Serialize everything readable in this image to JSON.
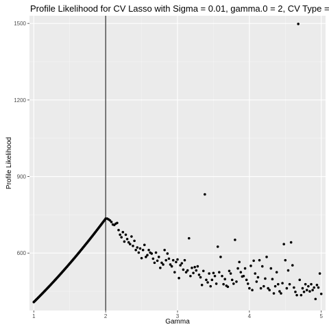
{
  "chart_data": {
    "type": "scatter",
    "title": "Profile Likelihood for CV Lasso with Sigma = 0.01, gamma.0 = 2, CV Type =",
    "xlabel": "Gamma",
    "ylabel": "Profile Likelihood",
    "xlim": [
      0.94,
      5.06
    ],
    "ylim": [
      375,
      1530
    ],
    "x_ticks": [
      "1",
      "2",
      "3",
      "4",
      "5"
    ],
    "y_ticks": [
      "600",
      "900",
      "1200",
      "1500"
    ],
    "vline_x": 2,
    "grid": true,
    "background": "#ebebeb",
    "point_color": "#000000",
    "segments": [
      {
        "from": [
          1.0,
          408
        ],
        "to": [
          2.0,
          735
        ],
        "step": 0.01,
        "shape": "concave"
      }
    ],
    "points": [
      [
        2.02,
        735
      ],
      [
        2.04,
        732
      ],
      [
        2.06,
        728
      ],
      [
        2.08,
        722
      ],
      [
        2.1,
        712
      ],
      [
        2.12,
        710
      ],
      [
        2.14,
        715
      ],
      [
        2.16,
        718
      ],
      [
        2.18,
        690
      ],
      [
        2.2,
        672
      ],
      [
        2.22,
        662
      ],
      [
        2.24,
        682
      ],
      [
        2.26,
        645
      ],
      [
        2.28,
        672
      ],
      [
        2.3,
        655
      ],
      [
        2.32,
        642
      ],
      [
        2.34,
        635
      ],
      [
        2.36,
        665
      ],
      [
        2.38,
        628
      ],
      [
        2.4,
        648
      ],
      [
        2.42,
        612
      ],
      [
        2.44,
        622
      ],
      [
        2.46,
        602
      ],
      [
        2.48,
        618
      ],
      [
        2.5,
        580
      ],
      [
        2.52,
        612
      ],
      [
        2.54,
        632
      ],
      [
        2.56,
        585
      ],
      [
        2.58,
        592
      ],
      [
        2.6,
        612
      ],
      [
        2.62,
        602
      ],
      [
        2.64,
        598
      ],
      [
        2.66,
        578
      ],
      [
        2.68,
        562
      ],
      [
        2.7,
        602
      ],
      [
        2.72,
        570
      ],
      [
        2.74,
        585
      ],
      [
        2.76,
        542
      ],
      [
        2.78,
        562
      ],
      [
        2.8,
        555
      ],
      [
        2.82,
        612
      ],
      [
        2.84,
        572
      ],
      [
        2.86,
        598
      ],
      [
        2.88,
        578
      ],
      [
        2.9,
        555
      ],
      [
        2.92,
        548
      ],
      [
        2.94,
        572
      ],
      [
        2.96,
        525
      ],
      [
        2.98,
        565
      ],
      [
        3.0,
        575
      ],
      [
        3.02,
        502
      ],
      [
        3.04,
        552
      ],
      [
        3.06,
        560
      ],
      [
        3.08,
        535
      ],
      [
        3.1,
        572
      ],
      [
        3.12,
        525
      ],
      [
        3.14,
        532
      ],
      [
        3.16,
        658
      ],
      [
        3.18,
        510
      ],
      [
        3.2,
        542
      ],
      [
        3.22,
        522
      ],
      [
        3.24,
        545
      ],
      [
        3.26,
        532
      ],
      [
        3.28,
        548
      ],
      [
        3.3,
        515
      ],
      [
        3.32,
        505
      ],
      [
        3.34,
        475
      ],
      [
        3.36,
        530
      ],
      [
        3.38,
        830
      ],
      [
        3.4,
        495
      ],
      [
        3.42,
        485
      ],
      [
        3.44,
        520
      ],
      [
        3.46,
        470
      ],
      [
        3.48,
        495
      ],
      [
        3.5,
        522
      ],
      [
        3.52,
        510
      ],
      [
        3.54,
        480
      ],
      [
        3.56,
        625
      ],
      [
        3.58,
        525
      ],
      [
        3.6,
        585
      ],
      [
        3.62,
        510
      ],
      [
        3.64,
        478
      ],
      [
        3.66,
        498
      ],
      [
        3.68,
        472
      ],
      [
        3.7,
        468
      ],
      [
        3.72,
        530
      ],
      [
        3.74,
        520
      ],
      [
        3.76,
        495
      ],
      [
        3.78,
        480
      ],
      [
        3.8,
        652
      ],
      [
        3.82,
        488
      ],
      [
        3.84,
        540
      ],
      [
        3.86,
        565
      ],
      [
        3.88,
        525
      ],
      [
        3.9,
        508
      ],
      [
        3.92,
        510
      ],
      [
        3.94,
        540
      ],
      [
        3.96,
        495
      ],
      [
        3.98,
        480
      ],
      [
        4.0,
        462
      ],
      [
        4.02,
        550
      ],
      [
        4.04,
        455
      ],
      [
        4.06,
        570
      ],
      [
        4.08,
        520
      ],
      [
        4.1,
        488
      ],
      [
        4.12,
        505
      ],
      [
        4.14,
        572
      ],
      [
        4.16,
        462
      ],
      [
        4.18,
        548
      ],
      [
        4.2,
        470
      ],
      [
        4.22,
        500
      ],
      [
        4.24,
        585
      ],
      [
        4.26,
        462
      ],
      [
        4.28,
        455
      ],
      [
        4.3,
        540
      ],
      [
        4.32,
        498
      ],
      [
        4.34,
        442
      ],
      [
        4.36,
        470
      ],
      [
        4.38,
        525
      ],
      [
        4.4,
        478
      ],
      [
        4.42,
        450
      ],
      [
        4.44,
        442
      ],
      [
        4.46,
        482
      ],
      [
        4.48,
        635
      ],
      [
        4.5,
        572
      ],
      [
        4.52,
        462
      ],
      [
        4.54,
        532
      ],
      [
        4.56,
        478
      ],
      [
        4.58,
        642
      ],
      [
        4.6,
        552
      ],
      [
        4.62,
        465
      ],
      [
        4.64,
        448
      ],
      [
        4.66,
        435
      ],
      [
        4.68,
        1498
      ],
      [
        4.7,
        495
      ],
      [
        4.72,
        435
      ],
      [
        4.74,
        462
      ],
      [
        4.76,
        448
      ],
      [
        4.78,
        478
      ],
      [
        4.8,
        455
      ],
      [
        4.82,
        470
      ],
      [
        4.84,
        450
      ],
      [
        4.86,
        478
      ],
      [
        4.88,
        455
      ],
      [
        4.9,
        465
      ],
      [
        4.92,
        420
      ],
      [
        4.94,
        475
      ],
      [
        4.96,
        465
      ],
      [
        4.98,
        520
      ],
      [
        5.0,
        440
      ]
    ]
  }
}
